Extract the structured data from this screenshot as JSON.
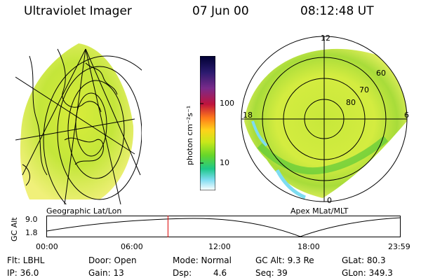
{
  "header": {
    "title": "Ultraviolet Imager",
    "date": "07 Jun 00",
    "time": "08:12:48 UT"
  },
  "left_panel": {
    "label": "Geographic Lat/Lon"
  },
  "colorbar": {
    "unit": "photon cm⁻²s⁻¹",
    "ticks": [
      "100",
      "10"
    ],
    "colors": [
      "#000033",
      "#2a1a6e",
      "#7a2a8a",
      "#c0143c",
      "#ff7a1a",
      "#ffd21a",
      "#c8e81a",
      "#66d62a",
      "#1ec88a",
      "#7ddcf0",
      "#ffffff"
    ]
  },
  "right_panel": {
    "label": "Apex MLat/MLT",
    "mlt_labels": [
      "12",
      "6",
      "18",
      "0"
    ],
    "lat_labels": [
      "60",
      "70",
      "80"
    ]
  },
  "altitude_plot": {
    "ylabel": "GC Alt",
    "yticks": [
      "9.0",
      "1.8"
    ],
    "xticks": [
      "00:00",
      "06:00",
      "12:00",
      "18:00",
      "23:59"
    ],
    "marker_hours": 8.21,
    "marker_color": "#dd0000"
  },
  "footer": {
    "flt": "Flt: LBHL",
    "ip": "IP: 36.0",
    "door": "Door: Open",
    "gain": "Gain: 13",
    "mode": "Mode: Normal",
    "dsp_label": "Dsp:",
    "dsp_value": "4.6",
    "gc_alt": "GC Alt: 9.3 Re",
    "seq": "Seq: 39",
    "glat": "GLat: 80.3",
    "glon": "GLon: 349.3"
  }
}
